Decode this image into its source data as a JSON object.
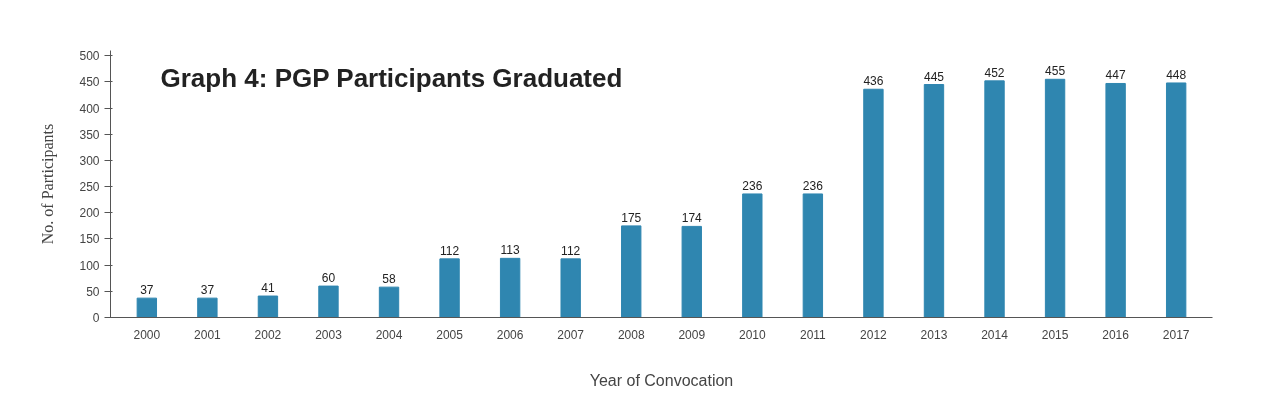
{
  "chart_data": {
    "type": "bar",
    "title": "Graph 4: PGP Participants Graduated",
    "xlabel": "Year of Convocation",
    "ylabel": "No. of Participants",
    "categories": [
      "2000",
      "2001",
      "2002",
      "2003",
      "2004",
      "2005",
      "2006",
      "2007",
      "2008",
      "2009",
      "2010",
      "2011",
      "2012",
      "2013",
      "2014",
      "2015",
      "2016",
      "2017"
    ],
    "values": [
      37,
      37,
      41,
      60,
      58,
      112,
      113,
      112,
      175,
      174,
      236,
      236,
      436,
      445,
      452,
      455,
      447,
      448
    ],
    "color": "#2f86b0",
    "ylim": [
      0,
      510
    ],
    "yticks": [
      0,
      50,
      100,
      150,
      200,
      250,
      300,
      350,
      400,
      450,
      500
    ],
    "data_labels": true,
    "grid": false
  }
}
